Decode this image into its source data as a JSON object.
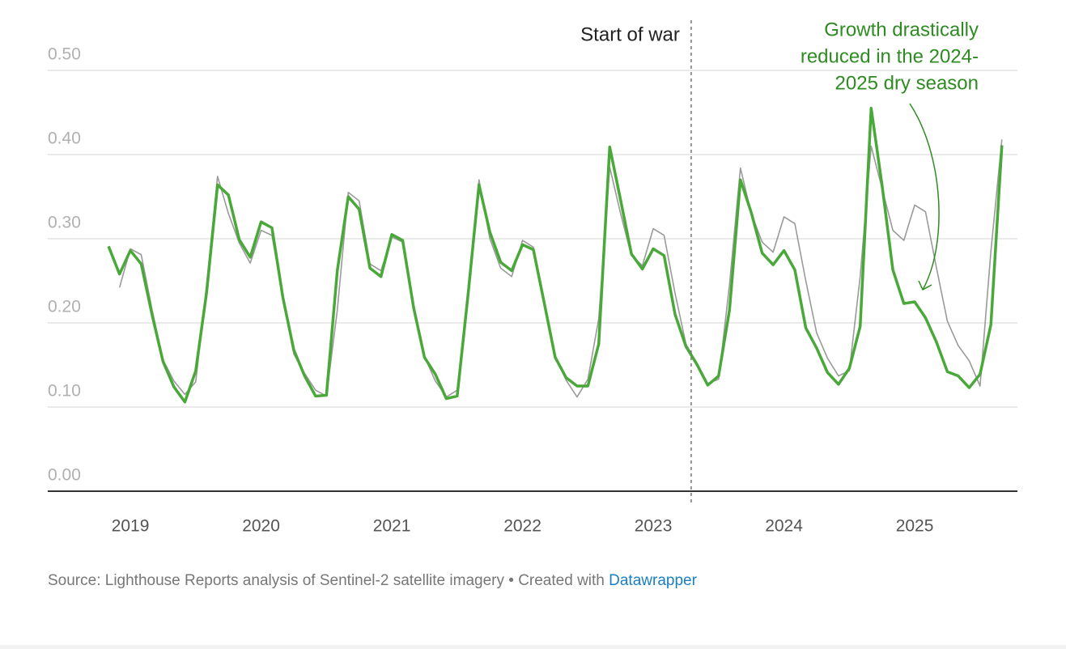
{
  "chart_data": {
    "type": "line",
    "x": [
      2018.833,
      2018.917,
      2019.0,
      2019.083,
      2019.167,
      2019.25,
      2019.333,
      2019.417,
      2019.5,
      2019.583,
      2019.667,
      2019.75,
      2019.833,
      2019.917,
      2020.0,
      2020.083,
      2020.167,
      2020.25,
      2020.333,
      2020.417,
      2020.5,
      2020.583,
      2020.667,
      2020.75,
      2020.833,
      2020.917,
      2021.0,
      2021.083,
      2021.167,
      2021.25,
      2021.333,
      2021.417,
      2021.5,
      2021.583,
      2021.667,
      2021.75,
      2021.833,
      2021.917,
      2022.0,
      2022.083,
      2022.167,
      2022.25,
      2022.333,
      2022.417,
      2022.5,
      2022.583,
      2022.667,
      2022.75,
      2022.833,
      2022.917,
      2023.0,
      2023.083,
      2023.167,
      2023.25,
      2023.333,
      2023.417,
      2023.5,
      2023.583,
      2023.667,
      2023.75,
      2023.833,
      2023.917,
      2024.0,
      2024.083,
      2024.167,
      2024.25,
      2024.333,
      2024.417,
      2024.5,
      2024.583,
      2024.667,
      2024.75,
      2024.833,
      2024.917,
      2025.0,
      2025.083,
      2025.167,
      2025.25,
      2025.333,
      2025.417,
      2025.5,
      2025.583,
      2025.667
    ],
    "series": [
      {
        "color": "#9a9a9a",
        "values": [
          null,
          0.242,
          0.288,
          0.281,
          0.215,
          0.156,
          0.131,
          0.115,
          0.13,
          0.245,
          0.374,
          0.33,
          0.295,
          0.271,
          0.31,
          0.304,
          0.23,
          0.163,
          0.14,
          0.12,
          0.113,
          0.215,
          0.355,
          0.345,
          0.27,
          0.262,
          0.302,
          0.296,
          0.215,
          0.16,
          0.131,
          0.112,
          0.12,
          0.24,
          0.37,
          0.3,
          0.265,
          0.255,
          0.298,
          0.29,
          0.226,
          0.16,
          0.132,
          0.112,
          0.133,
          0.205,
          0.385,
          0.33,
          0.28,
          0.268,
          0.312,
          0.304,
          0.235,
          0.175,
          0.152,
          0.128,
          0.133,
          0.245,
          0.384,
          0.33,
          0.296,
          0.284,
          0.326,
          0.318,
          0.25,
          0.188,
          0.158,
          0.137,
          0.143,
          0.255,
          0.41,
          0.36,
          0.31,
          0.298,
          0.34,
          0.332,
          0.265,
          0.202,
          0.173,
          0.155,
          0.125,
          0.285,
          0.418
        ]
      },
      {
        "color": "#4aa83a",
        "values": [
          0.291,
          0.258,
          0.286,
          0.27,
          0.209,
          0.154,
          0.124,
          0.106,
          0.143,
          0.236,
          0.364,
          0.352,
          0.299,
          0.278,
          0.32,
          0.313,
          0.23,
          0.168,
          0.137,
          0.113,
          0.114,
          0.262,
          0.35,
          0.335,
          0.265,
          0.255,
          0.305,
          0.298,
          0.218,
          0.159,
          0.139,
          0.11,
          0.113,
          0.233,
          0.364,
          0.308,
          0.272,
          0.262,
          0.293,
          0.287,
          0.223,
          0.159,
          0.135,
          0.125,
          0.125,
          0.175,
          0.409,
          0.346,
          0.282,
          0.264,
          0.288,
          0.28,
          0.21,
          0.172,
          0.151,
          0.126,
          0.137,
          0.215,
          0.37,
          0.331,
          0.283,
          0.269,
          0.286,
          0.263,
          0.194,
          0.17,
          0.141,
          0.127,
          0.146,
          0.196,
          0.455,
          0.364,
          0.263,
          0.223,
          0.225,
          0.206,
          0.177,
          0.142,
          0.137,
          0.123,
          0.139,
          0.198,
          0.411
        ]
      }
    ],
    "xlim": [
      2018.368,
      2025.786
    ],
    "xticks": [
      2019,
      2020,
      2021,
      2022,
      2023,
      2024,
      2025
    ],
    "ylim": [
      0,
      0.5
    ],
    "yticks": [
      {
        "value": 0,
        "label": "0.00"
      },
      {
        "value": 0.1,
        "label": "0.10"
      },
      {
        "value": 0.2,
        "label": "0.20"
      },
      {
        "value": 0.3,
        "label": "0.30"
      },
      {
        "value": 0.4,
        "label": "0.40"
      },
      {
        "value": 0.5,
        "label": "0.50"
      }
    ],
    "grid": true,
    "annotations": [
      {
        "x": 2023.29,
        "lines": [
          "Start of war"
        ]
      },
      {
        "lines": [
          "Growth drastically",
          "reduced in the 2024-",
          "2025 dry season"
        ]
      }
    ],
    "source": "Source: Lighthouse Reports analysis of Sentinel-2 satellite imagery",
    "created_with": "• Created with",
    "link": "Datawrapper"
  }
}
